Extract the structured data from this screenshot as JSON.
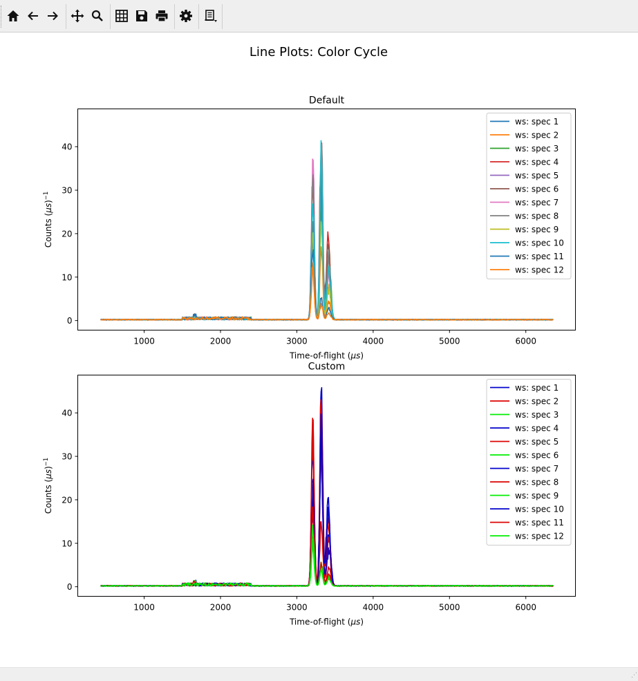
{
  "toolbar": {
    "buttons": [
      {
        "name": "home-button",
        "icon": "home-icon",
        "tooltip": "Home"
      },
      {
        "name": "back-button",
        "icon": "arrow-left-icon",
        "tooltip": "Back"
      },
      {
        "name": "forward-button",
        "icon": "arrow-right-icon",
        "tooltip": "Forward"
      },
      {
        "name": "pan-button",
        "icon": "move-icon",
        "tooltip": "Pan"
      },
      {
        "name": "zoom-button",
        "icon": "magnifier-icon",
        "tooltip": "Zoom"
      },
      {
        "name": "grid-button",
        "icon": "grid-icon",
        "tooltip": "Grid"
      },
      {
        "name": "save-button",
        "icon": "floppy-icon",
        "tooltip": "Save"
      },
      {
        "name": "print-button",
        "icon": "printer-icon",
        "tooltip": "Print"
      },
      {
        "name": "settings-button",
        "icon": "gear-icon",
        "tooltip": "Settings"
      },
      {
        "name": "script-button",
        "icon": "script-dropdown-icon",
        "tooltip": "Script"
      }
    ]
  },
  "figure": {
    "suptitle": "Line Plots: Color Cycle"
  },
  "chart_data": [
    {
      "type": "line",
      "title": "Default",
      "xlabel": "Time-of-flight ($\\mu s$)",
      "ylabel": "Counts ($\\mu s$)$^{-1}$",
      "xlim": [
        130,
        6650
      ],
      "ylim": [
        -2.2,
        48.7
      ],
      "xticks": [
        1000,
        2000,
        3000,
        4000,
        5000,
        6000
      ],
      "yticks": [
        0,
        10,
        20,
        30,
        40
      ],
      "legend_position": "upper right",
      "grid": false,
      "series": [
        {
          "name": "ws: spec 1",
          "color": "#1f77b4",
          "peaks": [
            [
              3210,
              17.5
            ],
            [
              3320,
              36.0
            ],
            [
              3420,
              8.0
            ]
          ]
        },
        {
          "name": "ws: spec 2",
          "color": "#ff7f0e",
          "peaks": [
            [
              3210,
              12.0
            ],
            [
              3320,
              16.0
            ],
            [
              3420,
              4.0
            ]
          ]
        },
        {
          "name": "ws: spec 3",
          "color": "#2ca02c",
          "peaks": [
            [
              3210,
              29.0
            ],
            [
              3320,
              26.0
            ],
            [
              3420,
              15.0
            ]
          ]
        },
        {
          "name": "ws: spec 4",
          "color": "#d62728",
          "peaks": [
            [
              3210,
              31.0
            ],
            [
              3320,
              43.0
            ],
            [
              3410,
              18.0
            ]
          ]
        },
        {
          "name": "ws: spec 5",
          "color": "#9467bd",
          "peaks": [
            [
              3210,
              35.5
            ],
            [
              3320,
              30.0
            ],
            [
              3420,
              11.0
            ]
          ]
        },
        {
          "name": "ws: spec 6",
          "color": "#8c564b",
          "peaks": [
            [
              3210,
              22.0
            ],
            [
              3320,
              35.0
            ],
            [
              3410,
              17.5
            ]
          ]
        },
        {
          "name": "ws: spec 7",
          "color": "#e377c2",
          "peaks": [
            [
              3210,
              35.0
            ],
            [
              3320,
              43.5
            ],
            [
              3420,
              10.0
            ]
          ]
        },
        {
          "name": "ws: spec 8",
          "color": "#7f7f7f",
          "peaks": [
            [
              3210,
              34.0
            ],
            [
              3320,
              46.3
            ],
            [
              3410,
              14.0
            ]
          ]
        },
        {
          "name": "ws: spec 9",
          "color": "#bcbd22",
          "peaks": [
            [
              3210,
              18.0
            ],
            [
              3320,
              24.0
            ],
            [
              3420,
              7.0
            ]
          ]
        },
        {
          "name": "ws: spec 10",
          "color": "#17becf",
          "peaks": [
            [
              3210,
              28.5
            ],
            [
              3320,
              36.5
            ],
            [
              3420,
              12.0
            ]
          ]
        },
        {
          "name": "ws: spec 11",
          "color": "#1f77b4",
          "peaks": [
            [
              3210,
              17.5
            ],
            [
              3320,
              5.0
            ],
            [
              3420,
              2.5
            ]
          ]
        },
        {
          "name": "ws: spec 12",
          "color": "#ff7f0e",
          "peaks": [
            [
              3210,
              13.0
            ],
            [
              3320,
              3.5
            ],
            [
              3420,
              1.5
            ]
          ]
        }
      ]
    },
    {
      "type": "line",
      "title": "Custom",
      "xlabel": "Time-of-flight ($\\mu s$)",
      "ylabel": "Counts ($\\mu s$)$^{-1}$",
      "xlim": [
        130,
        6650
      ],
      "ylim": [
        -2.2,
        48.7
      ],
      "xticks": [
        1000,
        2000,
        3000,
        4000,
        5000,
        6000
      ],
      "yticks": [
        0,
        10,
        20,
        30,
        40
      ],
      "legend_position": "upper right",
      "grid": false,
      "series": [
        {
          "name": "ws: spec 1",
          "color": "#0000cc",
          "peaks": [
            [
              3210,
              17.5
            ],
            [
              3320,
              36.0
            ],
            [
              3420,
              8.0
            ]
          ]
        },
        {
          "name": "ws: spec 2",
          "color": "#dd0000",
          "peaks": [
            [
              3210,
              12.0
            ],
            [
              3320,
              16.0
            ],
            [
              3420,
              4.0
            ]
          ]
        },
        {
          "name": "ws: spec 3",
          "color": "#00ee00",
          "peaks": [
            [
              3210,
              13.0
            ],
            [
              3320,
              5.0
            ],
            [
              3420,
              2.0
            ]
          ]
        },
        {
          "name": "ws: spec 4",
          "color": "#0000cc",
          "peaks": [
            [
              3210,
              31.0
            ],
            [
              3320,
              43.0
            ],
            [
              3410,
              18.0
            ]
          ]
        },
        {
          "name": "ws: spec 5",
          "color": "#dd0000",
          "peaks": [
            [
              3210,
              35.5
            ],
            [
              3320,
              30.0
            ],
            [
              3420,
              11.0
            ]
          ]
        },
        {
          "name": "ws: spec 6",
          "color": "#00ee00",
          "peaks": [
            [
              3210,
              10.0
            ],
            [
              3320,
              4.0
            ],
            [
              3420,
              2.0
            ]
          ]
        },
        {
          "name": "ws: spec 7",
          "color": "#0000cc",
          "peaks": [
            [
              3210,
              28.5
            ],
            [
              3320,
              36.0
            ],
            [
              3420,
              12.0
            ]
          ]
        },
        {
          "name": "ws: spec 8",
          "color": "#dd0000",
          "peaks": [
            [
              3210,
              34.0
            ],
            [
              3320,
              46.3
            ],
            [
              3410,
              14.0
            ]
          ]
        },
        {
          "name": "ws: spec 9",
          "color": "#00ee00",
          "peaks": [
            [
              3210,
              9.0
            ],
            [
              3320,
              3.5
            ],
            [
              3420,
              1.5
            ]
          ]
        },
        {
          "name": "ws: spec 10",
          "color": "#0000cc",
          "peaks": [
            [
              3210,
              22.0
            ],
            [
              3320,
              35.0
            ],
            [
              3410,
              17.5
            ]
          ]
        },
        {
          "name": "ws: spec 11",
          "color": "#dd0000",
          "peaks": [
            [
              3210,
              17.5
            ],
            [
              3320,
              5.0
            ],
            [
              3420,
              2.5
            ]
          ]
        },
        {
          "name": "ws: spec 12",
          "color": "#00ee00",
          "peaks": [
            [
              3210,
              13.0
            ],
            [
              3320,
              4.0
            ],
            [
              3420,
              1.5
            ]
          ]
        }
      ]
    }
  ]
}
